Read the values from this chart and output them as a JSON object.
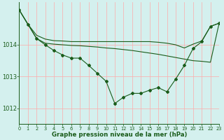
{
  "title": "Graphe pression niveau de la mer (hPa)",
  "bg_color": "#d4f0ee",
  "line_color": "#1a5c1a",
  "grid_color": "#ffaaaa",
  "xlim": [
    0,
    23
  ],
  "ylim": [
    1011.5,
    1015.35
  ],
  "yticks": [
    1012,
    1013,
    1014
  ],
  "xticks": [
    0,
    1,
    2,
    3,
    4,
    5,
    6,
    7,
    8,
    9,
    10,
    11,
    12,
    13,
    14,
    15,
    16,
    17,
    18,
    19,
    20,
    21,
    22,
    23
  ],
  "series1_x": [
    0,
    1,
    2,
    3,
    4,
    5,
    6,
    7,
    8,
    9,
    10,
    11,
    12,
    13,
    14,
    15,
    16,
    17,
    18,
    19,
    20,
    21,
    22,
    23
  ],
  "series1_y": [
    1015.1,
    1014.65,
    1014.2,
    1014.0,
    1013.82,
    1013.68,
    1013.58,
    1013.58,
    1013.35,
    1013.1,
    1012.85,
    1012.15,
    1012.35,
    1012.47,
    1012.47,
    1012.57,
    1012.65,
    1012.52,
    1012.92,
    1013.35,
    1013.88,
    1014.1,
    1014.58,
    1014.68
  ],
  "series2_x": [
    0,
    1,
    2,
    3,
    4,
    5,
    6,
    7,
    8,
    9,
    10,
    11,
    12,
    13,
    14,
    15,
    16,
    17,
    18,
    19,
    20,
    21,
    22,
    23
  ],
  "series2_y": [
    1015.1,
    1014.65,
    1014.2,
    1014.05,
    1014.02,
    1014.0,
    1013.98,
    1013.97,
    1013.95,
    1013.93,
    1013.9,
    1013.88,
    1013.85,
    1013.82,
    1013.78,
    1013.74,
    1013.7,
    1013.65,
    1013.6,
    1013.55,
    1013.5,
    1013.48,
    1013.45,
    1014.68
  ],
  "series3_x": [
    0,
    1,
    2,
    3,
    4,
    5,
    6,
    7,
    8,
    9,
    10,
    11,
    12,
    13,
    14,
    15,
    16,
    17,
    18,
    19,
    20,
    21,
    22,
    23
  ],
  "series3_y": [
    1015.1,
    1014.65,
    1014.3,
    1014.18,
    1014.13,
    1014.12,
    1014.1,
    1014.1,
    1014.1,
    1014.1,
    1014.1,
    1014.1,
    1014.1,
    1014.1,
    1014.1,
    1014.1,
    1014.08,
    1014.05,
    1014.0,
    1013.9,
    1014.02,
    1014.12,
    1014.58,
    1014.68
  ]
}
